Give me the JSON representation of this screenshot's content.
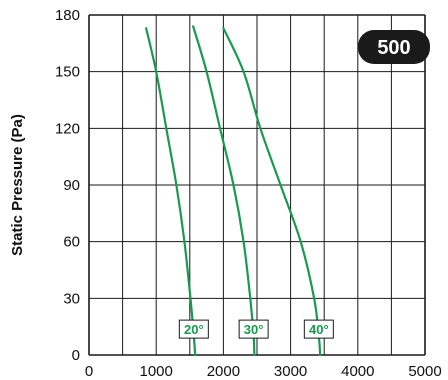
{
  "chart_data": {
    "type": "line",
    "title": "",
    "badge": "500",
    "ylabel": "Static Pressure (Pa)",
    "xlabel": "",
    "xlim": [
      0,
      5000
    ],
    "ylim": [
      0,
      180
    ],
    "xticks": [
      0,
      1000,
      2000,
      3000,
      4000,
      5000
    ],
    "yticks": [
      0,
      30,
      60,
      90,
      120,
      150,
      180
    ],
    "x_gridlines": [
      0,
      500,
      1000,
      1500,
      2000,
      2500,
      3000,
      3500,
      4000,
      4500,
      5000
    ],
    "y_gridlines": [
      0,
      30,
      60,
      90,
      120,
      150,
      180
    ],
    "grid": true,
    "line_color": "#1a9a50",
    "series": [
      {
        "name": "20°",
        "points": [
          [
            850,
            173
          ],
          [
            1000,
            150
          ],
          [
            1150,
            120
          ],
          [
            1300,
            90
          ],
          [
            1420,
            60
          ],
          [
            1510,
            30
          ],
          [
            1560,
            10
          ],
          [
            1580,
            0
          ]
        ]
      },
      {
        "name": "30°",
        "points": [
          [
            1550,
            174
          ],
          [
            1750,
            150
          ],
          [
            1950,
            120
          ],
          [
            2150,
            90
          ],
          [
            2300,
            60
          ],
          [
            2400,
            30
          ],
          [
            2450,
            10
          ],
          [
            2460,
            0
          ]
        ]
      },
      {
        "name": "40°",
        "points": [
          [
            2000,
            173
          ],
          [
            2300,
            150
          ],
          [
            2550,
            120
          ],
          [
            2850,
            90
          ],
          [
            3150,
            60
          ],
          [
            3350,
            30
          ],
          [
            3420,
            10
          ],
          [
            3440,
            0
          ]
        ]
      }
    ]
  }
}
